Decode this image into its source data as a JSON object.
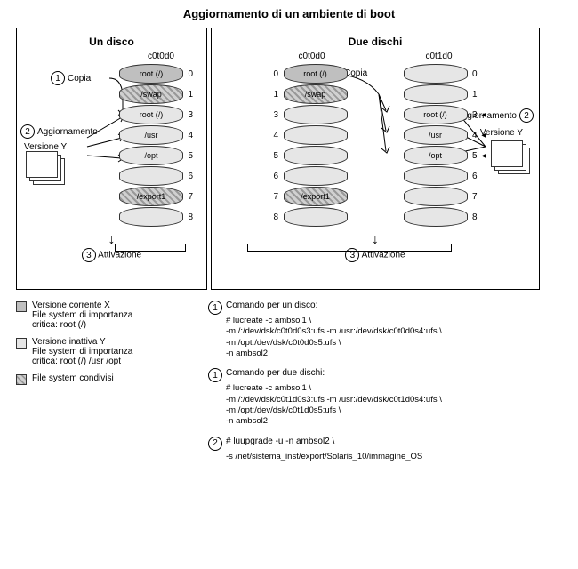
{
  "title": "Aggiornamento di un ambiente di boot",
  "colors": {
    "current": "#bfbfbf",
    "inactive": "#e6e6e6",
    "shared_hatch_a": "#999999",
    "shared_hatch_b": "#d0d0d0",
    "border": "#333333",
    "bg": "#ffffff"
  },
  "panel1": {
    "title": "Un disco",
    "disk": "c0t0d0",
    "copy": "Copia",
    "agg": "Aggiornamento",
    "version": "Versione Y",
    "activation": "Attivazione",
    "slices": [
      {
        "label": "root (/)",
        "n": "0",
        "fill": "current"
      },
      {
        "label": "/swap",
        "n": "1",
        "fill": "shared"
      },
      {
        "label": "root (/)",
        "n": "3",
        "fill": "inactive"
      },
      {
        "label": "/usr",
        "n": "4",
        "fill": "inactive"
      },
      {
        "label": "/opt",
        "n": "5",
        "fill": "inactive"
      },
      {
        "label": "",
        "n": "6",
        "fill": "inactive"
      },
      {
        "label": "/export1",
        "n": "7",
        "fill": "shared"
      },
      {
        "label": "",
        "n": "8",
        "fill": "inactive"
      }
    ]
  },
  "panel2": {
    "title": "Due dischi",
    "diskA": "c0t0d0",
    "diskB": "c0t1d0",
    "copy": "Copia",
    "agg": "Aggiornamento",
    "version": "Versione Y",
    "activation": "Attivazione",
    "slicesA": [
      {
        "label": "root (/)",
        "n": "0",
        "fill": "current"
      },
      {
        "label": "/swap",
        "n": "1",
        "fill": "shared"
      },
      {
        "label": "",
        "n": "3",
        "fill": "inactive"
      },
      {
        "label": "",
        "n": "4",
        "fill": "inactive"
      },
      {
        "label": "",
        "n": "5",
        "fill": "inactive"
      },
      {
        "label": "",
        "n": "6",
        "fill": "inactive"
      },
      {
        "label": "/export1",
        "n": "7",
        "fill": "shared"
      },
      {
        "label": "",
        "n": "8",
        "fill": "inactive"
      }
    ],
    "slicesB": [
      {
        "label": "",
        "n": "0",
        "fill": "inactive"
      },
      {
        "label": "",
        "n": "1",
        "fill": "inactive"
      },
      {
        "label": "root (/)",
        "n": "3",
        "fill": "inactive"
      },
      {
        "label": "/usr",
        "n": "4",
        "fill": "inactive"
      },
      {
        "label": "/opt",
        "n": "5",
        "fill": "inactive"
      },
      {
        "label": "",
        "n": "6",
        "fill": "inactive"
      },
      {
        "label": "",
        "n": "7",
        "fill": "inactive"
      },
      {
        "label": "",
        "n": "8",
        "fill": "inactive"
      }
    ]
  },
  "legend": {
    "a": "Versione corrente X\nFile system di importanza\ncritica: root (/)",
    "b": "Versione inattiva Y\nFile system di importanza\ncritica: root (/) /usr /opt",
    "c": "File system condivisi"
  },
  "cmd1": {
    "h": "Comando per un disco:",
    "l1": "# lucreate -c ambsol1 \\",
    "l2": "-m /:/dev/dsk/c0t0d0s3:ufs -m /usr:/dev/dsk/c0t0d0s4:ufs \\",
    "l3": "-m /opt:/dev/dsk/c0t0d0s5:ufs \\",
    "l4": "-n ambsol2"
  },
  "cmd2": {
    "h": "Comando per due dischi:",
    "l1": "# lucreate -c ambsol1 \\",
    "l2": "-m /:/dev/dsk/c0t1d0s3:ufs -m /usr:/dev/dsk/c0t1d0s4:ufs \\",
    "l3": "-m /opt:/dev/dsk/c0t1d0s5:ufs \\",
    "l4": "-n ambsol2"
  },
  "cmd3": {
    "l1": "# luupgrade -u -n ambsol2 \\",
    "l2": "-s /net/sistema_inst/export/Solaris_10/immagine_OS"
  }
}
